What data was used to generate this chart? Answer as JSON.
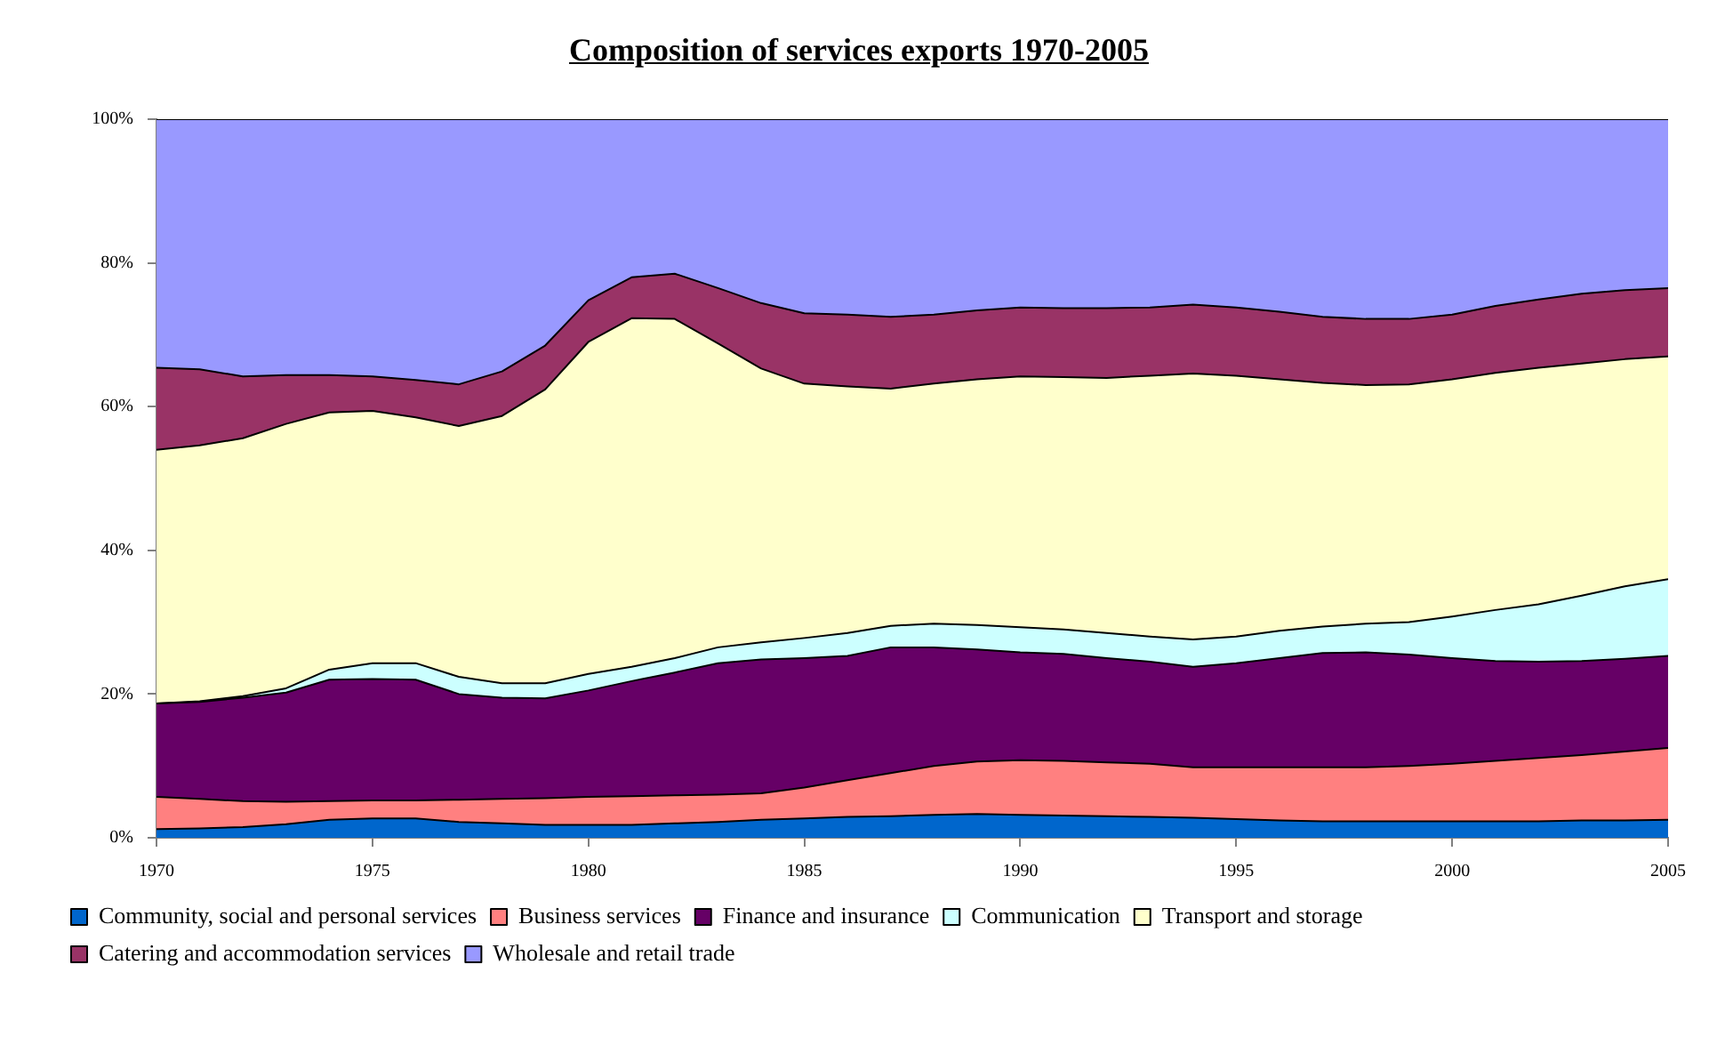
{
  "chart_data": {
    "type": "area",
    "title": "Composition of services exports 1970-2005",
    "stacked": true,
    "legend": "bottom",
    "grid": false,
    "x": [
      1970,
      1971,
      1972,
      1973,
      1974,
      1975,
      1976,
      1977,
      1978,
      1979,
      1980,
      1981,
      1982,
      1983,
      1984,
      1985,
      1986,
      1987,
      1988,
      1989,
      1990,
      1991,
      1992,
      1993,
      1994,
      1995,
      1996,
      1997,
      1998,
      1999,
      2000,
      2001,
      2002,
      2003,
      2004,
      2005
    ],
    "xlim": [
      1970,
      2005
    ],
    "xticks": [
      1970,
      1975,
      1980,
      1985,
      1990,
      1995,
      2000,
      2005
    ],
    "ylim": [
      0,
      100
    ],
    "yticks": [
      {
        "value": 0,
        "label": "0%"
      },
      {
        "value": 20,
        "label": "20%"
      },
      {
        "value": 40,
        "label": "40%"
      },
      {
        "value": 60,
        "label": "60%"
      },
      {
        "value": 80,
        "label": "80%"
      },
      {
        "value": 100,
        "label": "100%"
      }
    ],
    "series": [
      {
        "name": "Community, social and personal services",
        "color": "#0066cc",
        "values": [
          1.2,
          1.3,
          1.5,
          1.9,
          2.5,
          2.7,
          2.7,
          2.2,
          2.0,
          1.8,
          1.8,
          1.8,
          2.0,
          2.2,
          2.5,
          2.7,
          2.9,
          3.0,
          3.2,
          3.3,
          3.2,
          3.1,
          3.0,
          2.9,
          2.8,
          2.6,
          2.4,
          2.3,
          2.3,
          2.3,
          2.3,
          2.3,
          2.3,
          2.4,
          2.4,
          2.5
        ]
      },
      {
        "name": "Business services",
        "color": "#ff8080",
        "values": [
          4.5,
          4.1,
          3.6,
          3.1,
          2.6,
          2.5,
          2.5,
          3.1,
          3.4,
          3.7,
          3.9,
          4.0,
          3.9,
          3.8,
          3.7,
          4.3,
          5.1,
          6.0,
          6.8,
          7.3,
          7.6,
          7.6,
          7.5,
          7.4,
          7.0,
          7.2,
          7.4,
          7.5,
          7.5,
          7.7,
          8.0,
          8.4,
          8.8,
          9.1,
          9.6,
          10.0
        ]
      },
      {
        "name": "Finance and insurance",
        "color": "#660066",
        "values": [
          13.0,
          13.5,
          14.4,
          15.2,
          16.9,
          16.9,
          16.8,
          14.7,
          14.1,
          13.9,
          14.8,
          16.0,
          17.1,
          18.3,
          18.6,
          18.0,
          17.3,
          17.5,
          16.5,
          15.6,
          15.0,
          14.9,
          14.5,
          14.2,
          14.0,
          14.5,
          15.2,
          15.9,
          16.0,
          15.5,
          14.7,
          13.9,
          13.4,
          13.1,
          12.9,
          12.8
        ]
      },
      {
        "name": "Communication",
        "color": "#ccffff",
        "values": [
          0.0,
          0.1,
          0.2,
          0.6,
          1.4,
          2.2,
          2.3,
          2.4,
          2.0,
          2.1,
          2.3,
          2.0,
          2.0,
          2.2,
          2.4,
          2.8,
          3.2,
          3.0,
          3.3,
          3.4,
          3.5,
          3.4,
          3.5,
          3.5,
          3.8,
          3.7,
          3.8,
          3.7,
          4.0,
          4.5,
          5.8,
          7.1,
          8.0,
          9.1,
          10.1,
          10.7
        ]
      },
      {
        "name": "Transport and storage",
        "color": "#ffffcc",
        "values": [
          35.3,
          35.6,
          35.9,
          36.8,
          35.8,
          35.1,
          34.2,
          34.9,
          37.2,
          40.9,
          46.2,
          48.5,
          47.2,
          42.3,
          38.1,
          35.4,
          34.3,
          33.0,
          33.4,
          34.2,
          34.9,
          35.1,
          35.5,
          36.3,
          37.0,
          36.3,
          35.0,
          33.9,
          33.2,
          33.1,
          33.0,
          33.0,
          32.9,
          32.3,
          31.6,
          31.0
        ]
      },
      {
        "name": "Catering and accommodation services",
        "color": "#993366",
        "values": [
          11.4,
          10.6,
          8.6,
          6.8,
          5.2,
          4.8,
          5.2,
          5.8,
          6.2,
          6.1,
          5.8,
          5.7,
          6.3,
          7.7,
          9.1,
          9.8,
          10.0,
          10.0,
          9.6,
          9.6,
          9.6,
          9.6,
          9.7,
          9.5,
          9.6,
          9.5,
          9.4,
          9.2,
          9.2,
          9.1,
          9.0,
          9.3,
          9.5,
          9.7,
          9.6,
          9.5
        ]
      },
      {
        "name": "Wholesale and retail trade",
        "color": "#9999ff",
        "values": [
          34.6,
          34.8,
          35.8,
          35.6,
          35.6,
          35.8,
          36.3,
          36.9,
          35.1,
          31.5,
          25.2,
          22.0,
          21.5,
          23.5,
          25.6,
          27.0,
          27.2,
          27.5,
          27.2,
          26.6,
          26.2,
          26.3,
          26.3,
          26.2,
          25.8,
          26.2,
          26.8,
          27.5,
          27.8,
          27.8,
          27.2,
          26.0,
          25.1,
          24.3,
          23.8,
          23.5
        ]
      }
    ]
  }
}
